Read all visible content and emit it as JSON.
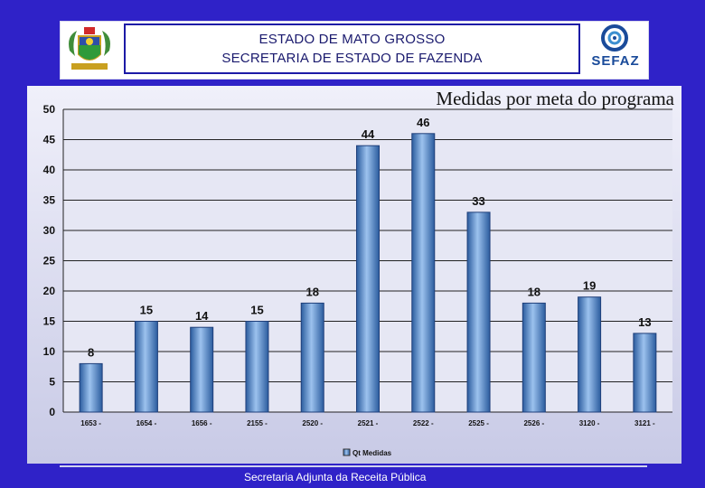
{
  "header": {
    "line1": "ESTADO DE MATO GROSSO",
    "line2": "SECRETARIA DE ESTADO DE FAZENDA",
    "logo_text": "SEFAZ"
  },
  "footer": {
    "text": "Secretaria Adjunta da Receita Pública"
  },
  "colors": {
    "background": "#2f22c8",
    "bar": "#5f92d4",
    "bar_dark": "#2b5c9e",
    "plot": "#e6e7f4"
  },
  "chart_data": {
    "type": "bar",
    "title": "Medidas por meta do programa",
    "categories": [
      "1653 -",
      "1654 -",
      "1656 -",
      "2155 -",
      "2520 -",
      "2521 -",
      "2522 -",
      "2525 -",
      "2526 -",
      "3120 -",
      "3121 -"
    ],
    "series": [
      {
        "name": "Qt Medidas",
        "values": [
          8,
          15,
          14,
          15,
          18,
          44,
          46,
          33,
          18,
          19,
          13
        ]
      }
    ],
    "ylim": [
      0,
      50
    ],
    "yticks": [
      0,
      5,
      10,
      15,
      20,
      25,
      30,
      35,
      40,
      45,
      50
    ],
    "grid": true,
    "legend": "bottom"
  }
}
